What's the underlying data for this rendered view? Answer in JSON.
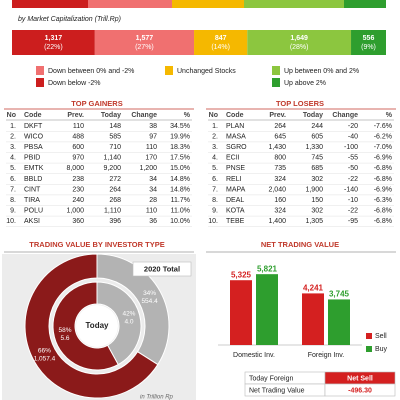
{
  "chart_data": [
    {
      "type": "stacked_bar_h",
      "title": "by Market Capitalization (Trill.Rp)",
      "series": [
        {
          "name": "Down below -2%",
          "color": "#cc1e1e",
          "values": [
            1317
          ],
          "value_labels": [
            "1,317"
          ],
          "share_labels": [
            "(22%)"
          ]
        },
        {
          "name": "Down between 0% and -2%",
          "color": "#f07070",
          "values": [
            1577
          ],
          "value_labels": [
            "1,577"
          ],
          "share_labels": [
            "(27%)"
          ]
        },
        {
          "name": "Unchanged Stocks",
          "color": "#f5b800",
          "values": [
            847
          ],
          "value_labels": [
            "847"
          ],
          "share_labels": [
            "(14%)"
          ]
        },
        {
          "name": "Up between 0% and 2%",
          "color": "#8cc63f",
          "values": [
            1649
          ],
          "value_labels": [
            "1,649"
          ],
          "share_labels": [
            "(28%)"
          ]
        },
        {
          "name": "Up above 2%",
          "color": "#2e9e2e",
          "values": [
            556
          ],
          "value_labels": [
            "556"
          ],
          "share_labels": [
            "(9%)"
          ]
        }
      ]
    },
    {
      "type": "donut",
      "title": "TRADING VALUE BY INVESTOR TYPE",
      "colors": [
        "#8b1a1a",
        "#b3b3b3"
      ],
      "note": "in Trillion Rp",
      "rings": [
        {
          "name": "2020 Total",
          "values": [
            66,
            34
          ],
          "value_labels": [
            "66%",
            "34%"
          ],
          "amounts": [
            1057.4,
            554.4
          ],
          "amount_labels": [
            "1,057.4",
            "554.4"
          ]
        },
        {
          "name": "Today",
          "values": [
            58,
            42
          ],
          "value_labels": [
            "58%",
            "42%"
          ],
          "amounts": [
            5.6,
            4.0
          ],
          "amount_labels": [
            "5.6",
            "4.0"
          ]
        }
      ]
    },
    {
      "type": "bar",
      "title": "NET TRADING VALUE",
      "categories": [
        "Domestic Inv.",
        "Foreign Inv."
      ],
      "ylim": [
        0,
        6000
      ],
      "legend": "right",
      "series": [
        {
          "name": "Sell",
          "color": "#d42020",
          "values": [
            5325,
            4241
          ],
          "value_labels": [
            "5,325",
            "4,241"
          ]
        },
        {
          "name": "Buy",
          "color": "#2e9e2e",
          "values": [
            5821,
            3745
          ],
          "value_labels": [
            "5,821",
            "3,745"
          ]
        }
      ]
    }
  ],
  "gainers": {
    "title": "TOP GAINERS",
    "columns": [
      "No",
      "Code",
      "Prev.",
      "Today",
      "Change",
      "%"
    ],
    "rows": [
      [
        "1.",
        "DKFT",
        "110",
        "148",
        "38",
        "34.5%"
      ],
      [
        "2.",
        "WICO",
        "488",
        "585",
        "97",
        "19.9%"
      ],
      [
        "3.",
        "PBSA",
        "600",
        "710",
        "110",
        "18.3%"
      ],
      [
        "4.",
        "PBID",
        "970",
        "1,140",
        "170",
        "17.5%"
      ],
      [
        "5.",
        "EMTK",
        "8,000",
        "9,200",
        "1,200",
        "15.0%"
      ],
      [
        "6.",
        "BBLD",
        "238",
        "272",
        "34",
        "14.8%"
      ],
      [
        "7.",
        "CINT",
        "230",
        "264",
        "34",
        "14.8%"
      ],
      [
        "8.",
        "TIRA",
        "240",
        "268",
        "28",
        "11.7%"
      ],
      [
        "9.",
        "POLU",
        "1,000",
        "1,110",
        "110",
        "11.0%"
      ],
      [
        "10.",
        "AKSI",
        "360",
        "396",
        "36",
        "10.0%"
      ]
    ]
  },
  "losers": {
    "title": "TOP LOSERS",
    "columns": [
      "No",
      "Code",
      "Prev.",
      "Today",
      "Change",
      "%"
    ],
    "rows": [
      [
        "1.",
        "PLAN",
        "264",
        "244",
        "-20",
        "-7.6%"
      ],
      [
        "2.",
        "MASA",
        "645",
        "605",
        "-40",
        "-6.2%"
      ],
      [
        "3.",
        "SGRO",
        "1,430",
        "1,330",
        "-100",
        "-7.0%"
      ],
      [
        "4.",
        "ECII",
        "800",
        "745",
        "-55",
        "-6.9%"
      ],
      [
        "5.",
        "PNSE",
        "735",
        "685",
        "-50",
        "-6.8%"
      ],
      [
        "6.",
        "RELI",
        "324",
        "302",
        "-22",
        "-6.8%"
      ],
      [
        "7.",
        "MAPA",
        "2,040",
        "1,900",
        "-140",
        "-6.9%"
      ],
      [
        "8.",
        "DEAL",
        "160",
        "150",
        "-10",
        "-6.3%"
      ],
      [
        "9.",
        "KOTA",
        "324",
        "302",
        "-22",
        "-6.8%"
      ],
      [
        "10.",
        "TEBE",
        "1,400",
        "1,305",
        "-95",
        "-6.8%"
      ]
    ]
  },
  "net_table": {
    "rows": [
      [
        "Today Foreign",
        "Net Sell"
      ],
      [
        "Net Trading Value",
        "-496.30"
      ]
    ]
  }
}
